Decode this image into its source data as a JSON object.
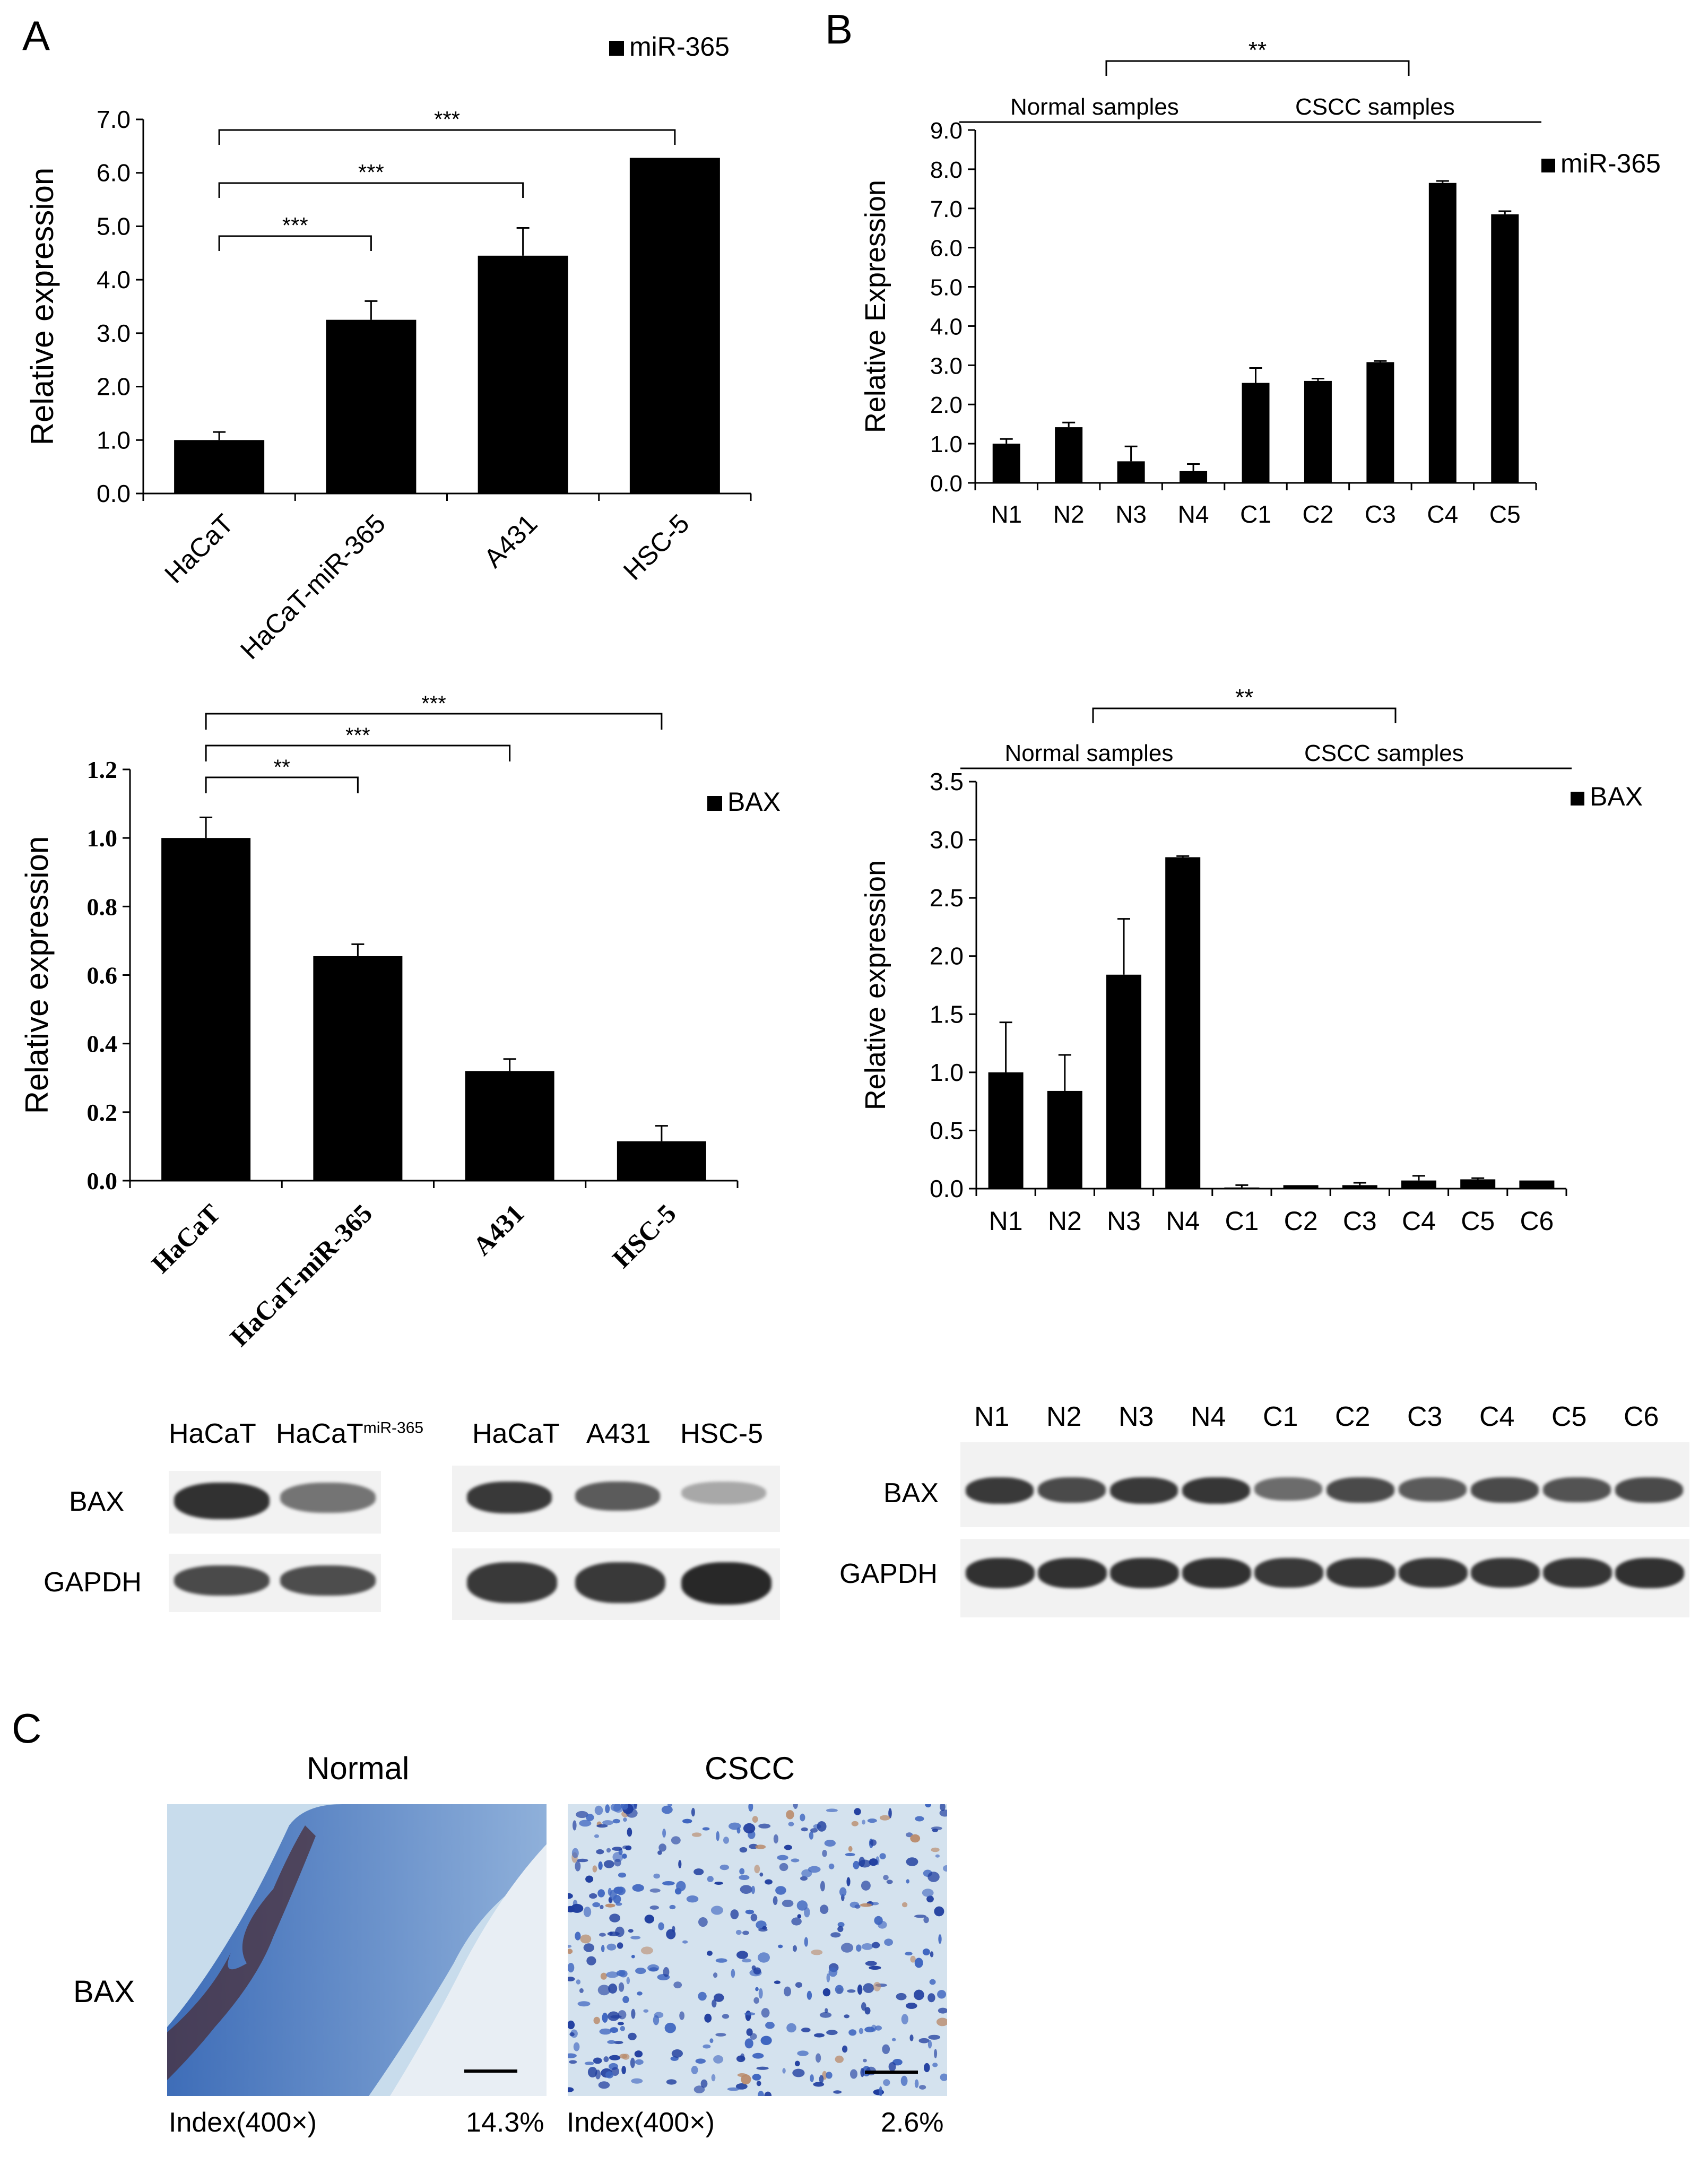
{
  "panels": {
    "a": "A",
    "b": "B",
    "c": "C"
  },
  "chart_data": [
    {
      "id": "a-mir",
      "type": "bar",
      "legend": "miR-365",
      "legend_position": "top-right",
      "ylabel": "Relative expression",
      "ylim": [
        0,
        7
      ],
      "yticks": [
        "0.0",
        "1.0",
        "2.0",
        "3.0",
        "4.0",
        "5.0",
        "6.0",
        "7.0"
      ],
      "categories": [
        "HaCaT",
        "HaCaT-miR-365",
        "A431",
        "HSC-5"
      ],
      "values": [
        1.0,
        3.25,
        4.45,
        6.28
      ],
      "errors": [
        0.15,
        0.35,
        0.52,
        0.0
      ],
      "significance": [
        {
          "from": "HaCaT",
          "to": "HSC-5",
          "label": "***"
        },
        {
          "from": "HaCaT",
          "to": "A431",
          "label": "***"
        },
        {
          "from": "HaCaT",
          "to": "HaCaT-miR-365",
          "label": "***"
        }
      ]
    },
    {
      "id": "b-mir",
      "type": "bar",
      "legend": "miR-365",
      "legend_position": "top-right",
      "ylabel": "Relative Expression",
      "ylim": [
        0,
        9
      ],
      "yticks": [
        "0.0",
        "1.0",
        "2.0",
        "3.0",
        "4.0",
        "5.0",
        "6.0",
        "7.0",
        "8.0",
        "9.0"
      ],
      "categories": [
        "N1",
        "N2",
        "N3",
        "N4",
        "C1",
        "C2",
        "C3",
        "C4",
        "C5"
      ],
      "values": [
        1.0,
        1.42,
        0.55,
        0.3,
        2.55,
        2.6,
        3.08,
        7.65,
        6.85
      ],
      "errors": [
        0.12,
        0.12,
        0.38,
        0.18,
        0.38,
        0.06,
        0.03,
        0.05,
        0.08
      ],
      "groups": [
        {
          "label": "Normal samples",
          "from": "N1",
          "to": "N4"
        },
        {
          "label": "CSCC samples",
          "from": "C1",
          "to": "C5"
        }
      ],
      "significance": [
        {
          "label": "**"
        }
      ]
    },
    {
      "id": "a-bax",
      "type": "bar",
      "legend": "BAX",
      "legend_position": "top-right",
      "ylabel": "Relative  expression",
      "ylim": [
        0,
        1.2
      ],
      "yticks": [
        "0.0",
        "0.2",
        "0.4",
        "0.6",
        "0.8",
        "1.0",
        "1.2"
      ],
      "categories": [
        "HaCaT",
        "HaCaT-miR-365",
        "A431",
        "HSC-5"
      ],
      "values": [
        1.0,
        0.655,
        0.32,
        0.115
      ],
      "errors": [
        0.06,
        0.035,
        0.035,
        0.045
      ],
      "significance": [
        {
          "from": "HaCaT",
          "to": "HSC-5",
          "label": "***"
        },
        {
          "from": "HaCaT",
          "to": "A431",
          "label": "***"
        },
        {
          "from": "HaCaT",
          "to": "HaCaT-miR-365",
          "label": "**"
        }
      ]
    },
    {
      "id": "b-bax",
      "type": "bar",
      "legend": "BAX",
      "legend_position": "top-right",
      "ylabel": "Relative expression",
      "ylim": [
        0,
        3.5
      ],
      "yticks": [
        "0.0",
        "0.5",
        "1.0",
        "1.5",
        "2.0",
        "2.5",
        "3.0",
        "3.5"
      ],
      "categories": [
        "N1",
        "N2",
        "N3",
        "N4",
        "C1",
        "C2",
        "C3",
        "C4",
        "C5",
        "C6"
      ],
      "values": [
        1.0,
        0.84,
        1.84,
        2.85,
        0.01,
        0.03,
        0.03,
        0.07,
        0.08,
        0.07
      ],
      "errors": [
        0.43,
        0.31,
        0.48,
        0.01,
        0.02,
        0.0,
        0.02,
        0.04,
        0.01,
        0.0
      ],
      "groups": [
        {
          "label": "Normal  samples",
          "from": "N1",
          "to": "N4"
        },
        {
          "label": "CSCC samples",
          "from": "C1",
          "to": "C6"
        }
      ],
      "significance": [
        {
          "label": "**"
        }
      ]
    }
  ],
  "blots": {
    "left1": {
      "lanes": [
        "HaCaT",
        "HaCaT"
      ],
      "sup": "miR-365",
      "rows": [
        "BAX",
        "GAPDH"
      ],
      "bax": [
        0.95,
        0.55
      ],
      "gapdh": [
        0.8,
        0.78
      ]
    },
    "left2": {
      "lanes": [
        "HaCaT",
        "A431",
        "HSC-5"
      ],
      "bax": [
        0.9,
        0.7,
        0.25
      ],
      "gapdh": [
        0.9,
        0.9,
        1.0
      ]
    },
    "right": {
      "lanes": [
        "N1",
        "N2",
        "N3",
        "N4",
        "C1",
        "C2",
        "C3",
        "C4",
        "C5",
        "C6"
      ],
      "rows": [
        "BAX",
        "GAPDH"
      ],
      "bax": [
        0.9,
        0.8,
        0.9,
        0.92,
        0.6,
        0.8,
        0.7,
        0.8,
        0.75,
        0.8
      ],
      "gapdh": [
        0.95,
        0.95,
        0.95,
        0.95,
        0.9,
        0.92,
        0.92,
        0.92,
        0.92,
        0.95
      ]
    }
  },
  "ihc": {
    "row_label": "BAX",
    "normal": {
      "title": "Normal",
      "index_label": "Index(400×)",
      "index_value": "14.3%"
    },
    "cscc": {
      "title": "CSCC",
      "index_label": "Index(400×)",
      "index_value": "2.6%"
    }
  }
}
